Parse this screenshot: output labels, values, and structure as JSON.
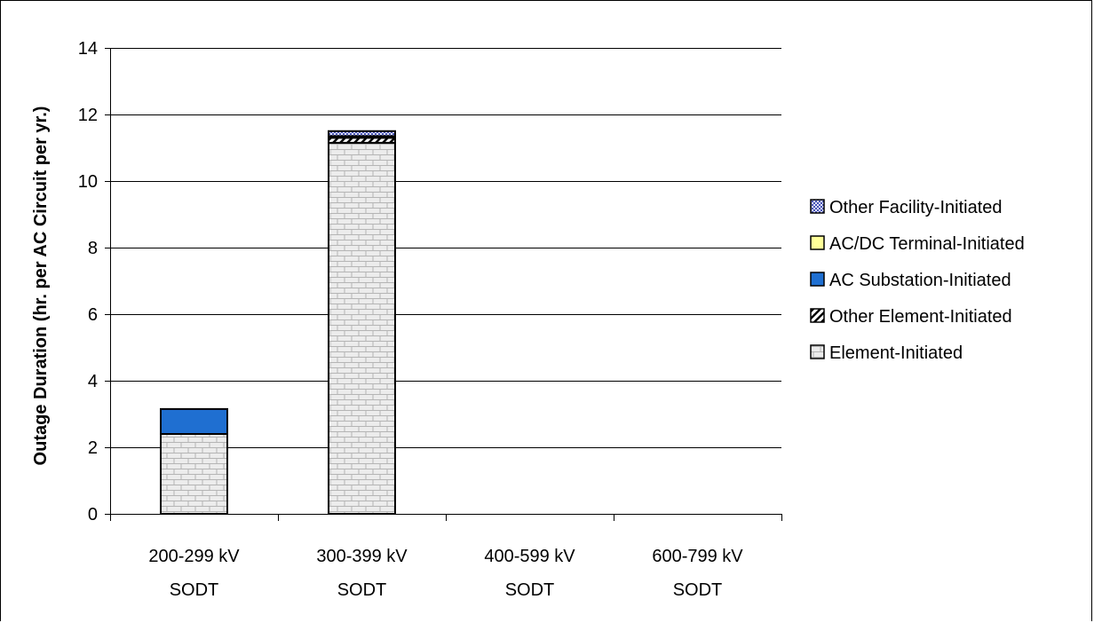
{
  "chart_data": {
    "type": "bar",
    "stacked": true,
    "categories": [
      [
        "200-299 kV",
        "SODT"
      ],
      [
        "300-399 kV",
        "SODT"
      ],
      [
        "400-599 kV",
        "SODT"
      ],
      [
        "600-799 kV",
        "SODT"
      ]
    ],
    "series": [
      {
        "name": "Element-Initiated",
        "values": [
          2.4,
          11.15,
          0,
          0
        ],
        "pattern": "brick",
        "color": "#e8e8e8"
      },
      {
        "name": "Other Element-Initiated",
        "values": [
          0,
          0.15,
          0,
          0
        ],
        "pattern": "diagonal",
        "color": "#000000"
      },
      {
        "name": "AC Substation-Initiated",
        "values": [
          0.75,
          0.05,
          0,
          0
        ],
        "pattern": "solid",
        "color": "#1f6fd1"
      },
      {
        "name": "AC/DC Terminal-Initiated",
        "values": [
          0,
          0,
          0,
          0
        ],
        "pattern": "solid",
        "color": "#ffff99"
      },
      {
        "name": "Other Facility-Initiated",
        "values": [
          0,
          0.15,
          0,
          0
        ],
        "pattern": "dots",
        "color": "#a0a8e0"
      }
    ],
    "ylabel": "Outage Duration (hr. per AC Circuit per yr.)",
    "xlabel": "",
    "title": "",
    "ylim": [
      0,
      14
    ],
    "yticks": [
      0,
      2,
      4,
      6,
      8,
      10,
      12,
      14
    ],
    "grid": true,
    "legend_position": "right",
    "legend_order": [
      "Other Facility-Initiated",
      "AC/DC Terminal-Initiated",
      "AC Substation-Initiated",
      "Other Element-Initiated",
      "Element-Initiated"
    ]
  }
}
